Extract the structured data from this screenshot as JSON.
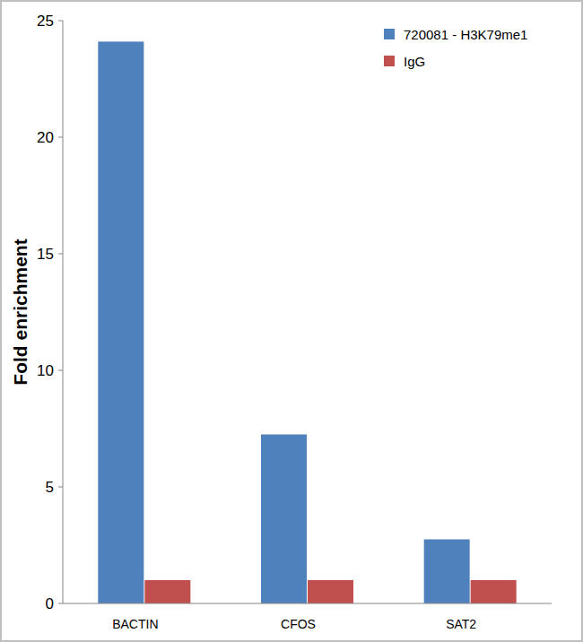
{
  "chart_data": {
    "type": "bar",
    "ylabel": "Fold enrichment",
    "categories": [
      "BACTIN",
      "CFOS",
      "SAT2"
    ],
    "series": [
      {
        "name": "720081 - H3K79me1",
        "color": "#4f81bd",
        "values": [
          24.1,
          7.25,
          2.75
        ]
      },
      {
        "name": "IgG",
        "color": "#c0504d",
        "values": [
          1,
          1,
          1
        ]
      }
    ],
    "ylim": [
      0,
      25
    ],
    "yticks": [
      0,
      5,
      10,
      15,
      20,
      25
    ],
    "grid": false,
    "legend": "top-right"
  }
}
